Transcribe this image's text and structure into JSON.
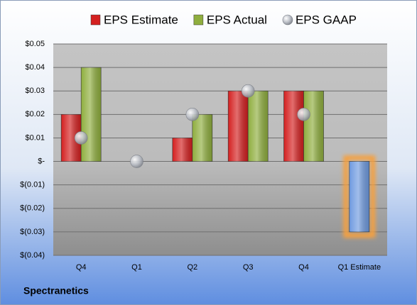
{
  "chart_data": {
    "type": "bar",
    "caption": "Spectranetics",
    "categories": [
      "Q4",
      "Q1",
      "Q2",
      "Q3",
      "Q4",
      "Q1 Estimate"
    ],
    "series": [
      {
        "name": "EPS Estimate",
        "color": "#d42020",
        "values": [
          0.02,
          null,
          0.01,
          0.03,
          0.03,
          -0.03
        ]
      },
      {
        "name": "EPS Actual",
        "color": "#8fae3e",
        "values": [
          0.04,
          null,
          0.02,
          0.03,
          0.03,
          null
        ]
      },
      {
        "name": "EPS GAAP",
        "color": "#b8bcc4",
        "marker": "circle",
        "values": [
          0.01,
          0,
          0.02,
          0.03,
          0.02,
          null
        ]
      }
    ],
    "highlight": {
      "index": 5,
      "color": "#6f9be0",
      "glow": "#f5a040"
    },
    "ylim": [
      -0.04,
      0.05
    ],
    "yticks": [
      {
        "value": -0.04,
        "label": "$(0.04)"
      },
      {
        "value": -0.03,
        "label": "$(0.03)"
      },
      {
        "value": -0.02,
        "label": "$(0.02)"
      },
      {
        "value": -0.01,
        "label": "$(0.01)"
      },
      {
        "value": 0,
        "label": "$-"
      },
      {
        "value": 0.01,
        "label": "$0.01"
      },
      {
        "value": 0.02,
        "label": "$0.02"
      },
      {
        "value": 0.03,
        "label": "$0.03"
      },
      {
        "value": 0.04,
        "label": "$0.04"
      },
      {
        "value": 0.05,
        "label": "$0.05"
      }
    ],
    "grid": true,
    "legend": "top"
  }
}
